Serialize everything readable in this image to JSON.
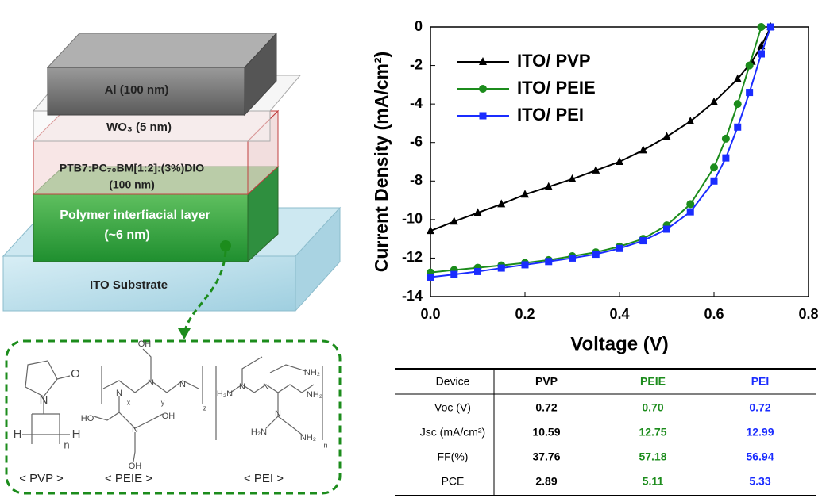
{
  "chart_data": {
    "type": "line",
    "xlabel": "Voltage (V)",
    "ylabel": "Current Density (mA/cm²)",
    "xlim": [
      0,
      0.8
    ],
    "xticks": [
      {
        "value": 0,
        "label": "0.0"
      },
      0.2,
      0.4,
      0.6,
      0.8
    ],
    "ylim": [
      -14,
      0
    ],
    "yticks": [
      0,
      -2,
      -4,
      -6,
      -8,
      -10,
      -12,
      -14
    ],
    "legend": "upper left",
    "grid": false,
    "series": [
      {
        "name": "ITO/ PVP",
        "color": "#000000",
        "marker": "triangle",
        "x": [
          0,
          0.05,
          0.1,
          0.15,
          0.2,
          0.25,
          0.3,
          0.35,
          0.4,
          0.45,
          0.5,
          0.55,
          0.6,
          0.65,
          0.68,
          0.7,
          0.72
        ],
        "values": [
          -10.59,
          -10.1,
          -9.65,
          -9.2,
          -8.7,
          -8.3,
          -7.9,
          -7.45,
          -7.0,
          -6.4,
          -5.7,
          -4.9,
          -3.9,
          -2.7,
          -1.8,
          -1.0,
          0
        ]
      },
      {
        "name": "ITO/ PEIE",
        "color": "#1c8c1c",
        "marker": "circle",
        "x": [
          0,
          0.05,
          0.1,
          0.15,
          0.2,
          0.25,
          0.3,
          0.35,
          0.4,
          0.45,
          0.5,
          0.55,
          0.6,
          0.625,
          0.65,
          0.675,
          0.7
        ],
        "values": [
          -12.75,
          -12.62,
          -12.5,
          -12.38,
          -12.25,
          -12.1,
          -11.9,
          -11.7,
          -11.4,
          -11.0,
          -10.3,
          -9.2,
          -7.3,
          -5.8,
          -4.0,
          -2.0,
          0
        ]
      },
      {
        "name": "ITO/ PEI",
        "color": "#1a2cff",
        "marker": "square",
        "x": [
          0,
          0.05,
          0.1,
          0.15,
          0.2,
          0.25,
          0.3,
          0.35,
          0.4,
          0.45,
          0.5,
          0.55,
          0.6,
          0.625,
          0.65,
          0.675,
          0.7,
          0.72
        ],
        "values": [
          -12.99,
          -12.85,
          -12.7,
          -12.52,
          -12.35,
          -12.18,
          -12.0,
          -11.8,
          -11.5,
          -11.1,
          -10.5,
          -9.6,
          -8.0,
          -6.8,
          -5.2,
          -3.4,
          -1.4,
          0
        ]
      }
    ]
  },
  "table": {
    "header": [
      "Device",
      "PVP",
      "PEIE",
      "PEI"
    ],
    "column_colors": [
      "#000000",
      "#000000",
      "#1c8c1c",
      "#1a2cff"
    ],
    "rows": [
      [
        "Voc (V)",
        "0.72",
        "0.70",
        "0.72"
      ],
      [
        "Jsc (mA/cm²)",
        "10.59",
        "12.75",
        "12.99"
      ],
      [
        "FF(%)",
        "37.76",
        "57.18",
        "56.94"
      ],
      [
        "PCE",
        "2.89",
        "5.11",
        "5.33"
      ]
    ]
  },
  "diagram": {
    "layers": [
      {
        "label": "Al (100 nm)"
      },
      {
        "label": "WO₃ (5 nm)"
      },
      {
        "label": "PTB7:PC₇₀BM[1:2]:(3%)DIO",
        "thickness": "(100 nm)"
      },
      {
        "label": "Polymer interfiacial layer",
        "thickness": "(~6 nm)"
      },
      {
        "label": "ITO Substrate"
      }
    ],
    "structures": [
      {
        "name": "< PVP >",
        "atoms": [
          "O",
          "N",
          "H",
          "H",
          "n"
        ]
      },
      {
        "name": "< PEIE >",
        "atoms": [
          "OH",
          "N",
          "N",
          "N",
          "x",
          "y",
          "z",
          "HO",
          "N",
          "OH",
          "OH"
        ]
      },
      {
        "name": "< PEI >",
        "atoms": [
          "H₂N",
          "NH₂",
          "N",
          "N",
          "N",
          "NH₂",
          "H₂N",
          "NH₂",
          "n"
        ]
      }
    ]
  }
}
